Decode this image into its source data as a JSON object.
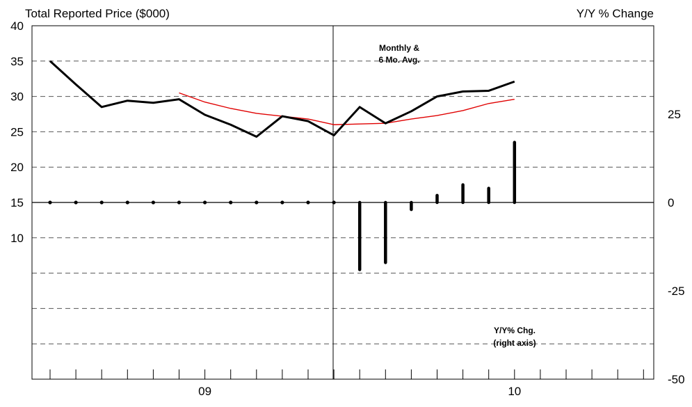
{
  "chart_data": {
    "type": "line",
    "left_title": "Total Reported Price ($000)",
    "right_title": "Y/Y % Change",
    "left_axis": {
      "ticks": [
        "40",
        "35",
        "30",
        "25",
        "20",
        "15",
        "10"
      ],
      "range": [
        -10,
        40
      ]
    },
    "right_axis": {
      "ticks": [
        "25",
        "0",
        "-25",
        "-50"
      ],
      "range": [
        -50,
        50
      ]
    },
    "x_tick_labels": [
      "09",
      "10"
    ],
    "x": [
      1,
      2,
      3,
      4,
      5,
      6,
      7,
      8,
      9,
      10,
      11,
      12,
      13,
      14,
      15,
      16,
      17,
      18,
      19
    ],
    "series": [
      {
        "values": [
          35.0,
          31.7,
          28.5,
          29.4,
          29.1,
          29.6,
          27.4,
          26.0,
          24.3,
          27.2,
          26.5,
          24.5,
          28.5,
          26.2,
          27.9,
          30.0,
          30.7,
          30.8,
          32.1
        ],
        "color": "#000000"
      },
      {
        "values": [
          null,
          null,
          null,
          null,
          null,
          30.5,
          29.2,
          28.3,
          27.6,
          27.2,
          26.8,
          26.0,
          26.1,
          26.2,
          26.8,
          27.3,
          28.0,
          29.0,
          29.6
        ],
        "color": "#e00000"
      }
    ],
    "yoy_change": {
      "values": [
        0,
        0,
        0,
        0,
        0,
        0,
        0,
        0,
        0,
        0,
        0,
        0,
        -19,
        -17,
        -2,
        2,
        5,
        4,
        17
      ],
      "color": "#000000"
    },
    "annotations": {
      "monthly_line1": "Monthly &",
      "monthly_line2": "6 Mo. Avg.",
      "yoy_line1": "Y/Y% Chg.",
      "yoy_line2": "(right axis)"
    },
    "grid": "dashed horizontal"
  }
}
